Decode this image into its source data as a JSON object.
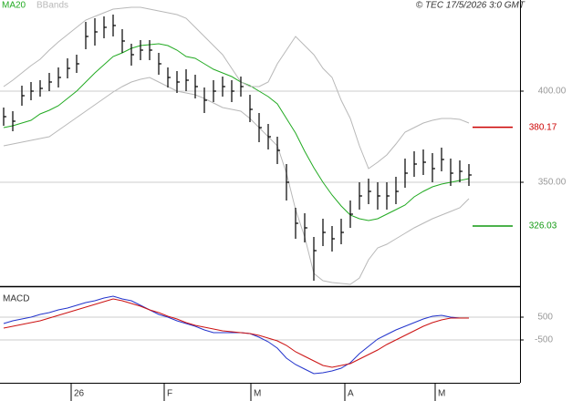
{
  "chart_data": [
    {
      "type": "ohlc",
      "credit": "© TEC 17/5/2026 3:0 GMT",
      "x": [
        0,
        1,
        2,
        3,
        4,
        5,
        6,
        7,
        8,
        9,
        10,
        11,
        12,
        13,
        14,
        15,
        16,
        17,
        18,
        19,
        20,
        21,
        22,
        23,
        24,
        25,
        26,
        27,
        28,
        29,
        30,
        31,
        32,
        33,
        34,
        35,
        36,
        37,
        38,
        39,
        40,
        41,
        42,
        43,
        44,
        45,
        46,
        47,
        48,
        49,
        50,
        51
      ],
      "high": [
        391,
        389,
        403,
        405,
        406,
        410,
        413,
        418,
        420,
        438,
        440,
        441,
        442,
        434,
        426,
        428,
        428,
        421,
        413,
        411,
        412,
        409,
        402,
        406,
        408,
        406,
        408,
        398,
        388,
        382,
        375,
        360,
        336,
        333,
        320,
        330,
        326,
        330,
        340,
        350,
        352,
        350,
        350,
        353,
        363,
        367,
        368,
        366,
        369,
        363,
        362,
        360
      ],
      "low": [
        381,
        378,
        392,
        395,
        397,
        400,
        402,
        407,
        410,
        423,
        425,
        429,
        430,
        421,
        414,
        417,
        417,
        409,
        402,
        399,
        400,
        396,
        388,
        394,
        397,
        394,
        397,
        383,
        372,
        368,
        360,
        340,
        319,
        317,
        296,
        315,
        312,
        316,
        325,
        335,
        338,
        335,
        335,
        338,
        347,
        353,
        354,
        350,
        356,
        348,
        350,
        348
      ],
      "close": [
        386,
        383.5,
        397.5,
        400,
        401.5,
        405,
        407.5,
        412.5,
        415,
        430,
        432.5,
        435,
        436,
        427.5,
        420,
        422.5,
        422.5,
        415,
        407.5,
        405,
        406,
        402.5,
        395,
        400,
        402.5,
        400,
        402.5,
        390,
        380,
        375,
        367.5,
        350,
        327.5,
        325,
        312.5,
        322.5,
        319,
        322.5,
        332.5,
        342.5,
        345,
        342.5,
        342.5,
        345,
        355,
        360,
        361,
        357.5,
        362.5,
        355,
        356,
        354
      ],
      "bar_color": "#000000",
      "series": [
        {
          "name": "MA20",
          "color": "#22aa22",
          "values": [
            380,
            381,
            382.5,
            384,
            387.5,
            389.5,
            392,
            396,
            400,
            405,
            410,
            414.5,
            419,
            421,
            423.5,
            425,
            425.5,
            426,
            425,
            422.5,
            419,
            418,
            415,
            412,
            410,
            408,
            405,
            403,
            400,
            397,
            393,
            385,
            377,
            367,
            358,
            350,
            343,
            337,
            332,
            330,
            329,
            330,
            332.5,
            335,
            337.5,
            342,
            345,
            347.5,
            349,
            350,
            351,
            352
          ]
        },
        {
          "name": "BBands",
          "color": "#b8b8b8",
          "upper": [
            402.5,
            406,
            410,
            414,
            417.5,
            422.5,
            427,
            431,
            435,
            439,
            441,
            443,
            445,
            445.5,
            446,
            446,
            445,
            444,
            443,
            442,
            440,
            435,
            430,
            425,
            420,
            412.5,
            405,
            402.5,
            402.5,
            405,
            415,
            422.5,
            430,
            425,
            420,
            412.5,
            407.5,
            395,
            385,
            370,
            357.5,
            361,
            365,
            371,
            377.5,
            380,
            382.5,
            384,
            385,
            385,
            384.5,
            382.5
          ],
          "lower": [
            370,
            371,
            372,
            373,
            374,
            375,
            378.5,
            382,
            385.5,
            389,
            392.5,
            396,
            399.5,
            402.5,
            405,
            406.5,
            407.5,
            405,
            402.5,
            400,
            399,
            398,
            396,
            393.5,
            391,
            390,
            389,
            385,
            380,
            375,
            370,
            355,
            335,
            320,
            300,
            296,
            295,
            294.5,
            294,
            297.5,
            307.5,
            314,
            316,
            319,
            322,
            325,
            327.5,
            330,
            332,
            334,
            336,
            341
          ]
        }
      ],
      "levels": [
        {
          "value": 380.17,
          "label": "380.17",
          "color": "#cc0000"
        },
        {
          "value": 326.03,
          "label": "326.03",
          "color": "#119911"
        }
      ],
      "xlim": [
        -0.4,
        56.6
      ],
      "xticks": [
        {
          "value": 7.4,
          "label": "26"
        },
        {
          "value": 17.6,
          "label": "F"
        },
        {
          "value": 27.1,
          "label": "M"
        },
        {
          "value": 37.4,
          "label": "A"
        },
        {
          "value": 47.3,
          "label": "M"
        }
      ],
      "ylim": [
        293.5,
        450
      ],
      "yticks": [
        {
          "value": 350,
          "label": "350.00"
        },
        {
          "value": 400,
          "label": "400.00"
        }
      ],
      "grid": true
    },
    {
      "type": "line",
      "title": "MACD",
      "series": [
        {
          "color": "#2233cc",
          "values": [
            220,
            340,
            420,
            500,
            620,
            700,
            820,
            900,
            1020,
            1140,
            1220,
            1340,
            1420,
            1300,
            1220,
            1020,
            820,
            620,
            500,
            340,
            220,
            100,
            -60,
            -180,
            -180,
            -180,
            -180,
            -220,
            -380,
            -580,
            -860,
            -1300,
            -1580,
            -1780,
            -1980,
            -1940,
            -1860,
            -1740,
            -1500,
            -1100,
            -780,
            -460,
            -260,
            -60,
            100,
            260,
            420,
            540,
            580,
            500,
            460,
            460
          ]
        },
        {
          "color": "#cc1111",
          "values": [
            20,
            100,
            180,
            260,
            340,
            460,
            580,
            700,
            820,
            940,
            1060,
            1180,
            1300,
            1220,
            1100,
            980,
            820,
            700,
            540,
            420,
            260,
            140,
            60,
            -20,
            -100,
            -140,
            -180,
            -220,
            -300,
            -420,
            -540,
            -740,
            -1020,
            -1220,
            -1420,
            -1620,
            -1700,
            -1620,
            -1540,
            -1340,
            -1140,
            -940,
            -700,
            -500,
            -300,
            -100,
            100,
            260,
            380,
            460,
            460,
            460
          ]
        }
      ],
      "ylim": [
        -2380,
        1700
      ],
      "yticks": [
        -500,
        500
      ],
      "grid": true
    }
  ]
}
